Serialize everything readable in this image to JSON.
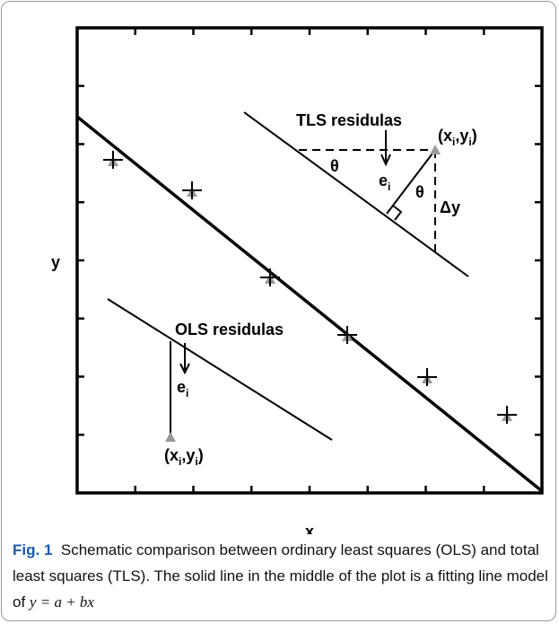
{
  "figure": {
    "axis_labels": {
      "x": "x",
      "y": "y"
    },
    "tls": {
      "title": "TLS residulas",
      "point": [
        "(x",
        "i",
        ",y",
        "i",
        ")"
      ],
      "theta": "θ",
      "residual": [
        "e",
        "i"
      ],
      "delta": "Δy"
    },
    "ols": {
      "title": "OLS residulas",
      "point": [
        "(x",
        "i",
        ",y",
        "i",
        ")"
      ],
      "residual": [
        "e",
        "i"
      ]
    },
    "caption": {
      "label": "Fig. 1",
      "text": "Schematic comparison between ordinary least squares (OLS) and total least squares (TLS). The solid line in the middle of the plot is a fitting line model of",
      "formula": "y = a + bx"
    }
  }
}
